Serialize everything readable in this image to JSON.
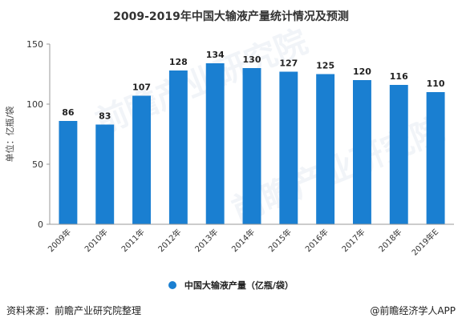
{
  "title": "2009-2019年中国大输液产量统计情况及预测",
  "source": "资料来源：前瞻产业研究院整理",
  "brand": "@前瞻经济学人APP",
  "watermark": "前瞻产业研究院",
  "chart_data": {
    "type": "bar",
    "title": "2009-2019年中国大输液产量统计情况及预测",
    "ylabel": "单位：亿瓶/袋",
    "xlabel": "",
    "ylim": [
      0,
      150
    ],
    "yticks": [
      0,
      50,
      100,
      150
    ],
    "grid": false,
    "legend_position": "bottom",
    "color": "#1a7fd1",
    "categories": [
      "2009年",
      "2010年",
      "2011年",
      "2012年",
      "2013年",
      "2014年",
      "2015年",
      "2016年",
      "2017年",
      "2018年",
      "2019年E"
    ],
    "series": [
      {
        "name": "中国大输液产量（亿瓶/袋）",
        "values": [
          86,
          83,
          107,
          128,
          134,
          130,
          127,
          125,
          120,
          116,
          110
        ]
      }
    ]
  }
}
